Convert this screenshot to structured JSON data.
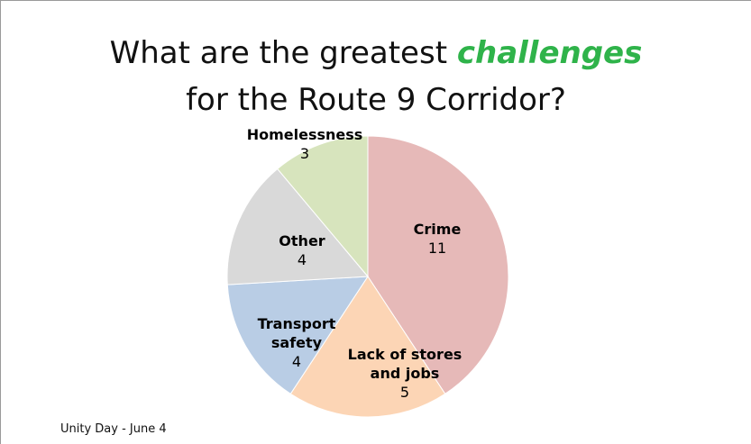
{
  "chart_data": {
    "type": "pie",
    "title": [
      {
        "text": "What are the greatest "
      },
      {
        "text": "challenges",
        "emphasis": true
      },
      {
        "text": " for the Route 9 Corridor?"
      }
    ],
    "emphasis_color": "#2fb34a",
    "categories": [
      "Crime",
      "Lack of stores and jobs",
      "Transport safety",
      "Other",
      "Homelessness"
    ],
    "values": [
      11,
      5,
      4,
      4,
      3
    ],
    "colors": [
      "#e6b9b8",
      "#fcd5b5",
      "#b9cde5",
      "#d9d9d9",
      "#d7e4bd"
    ],
    "footer": "Unity Day - June 4"
  }
}
